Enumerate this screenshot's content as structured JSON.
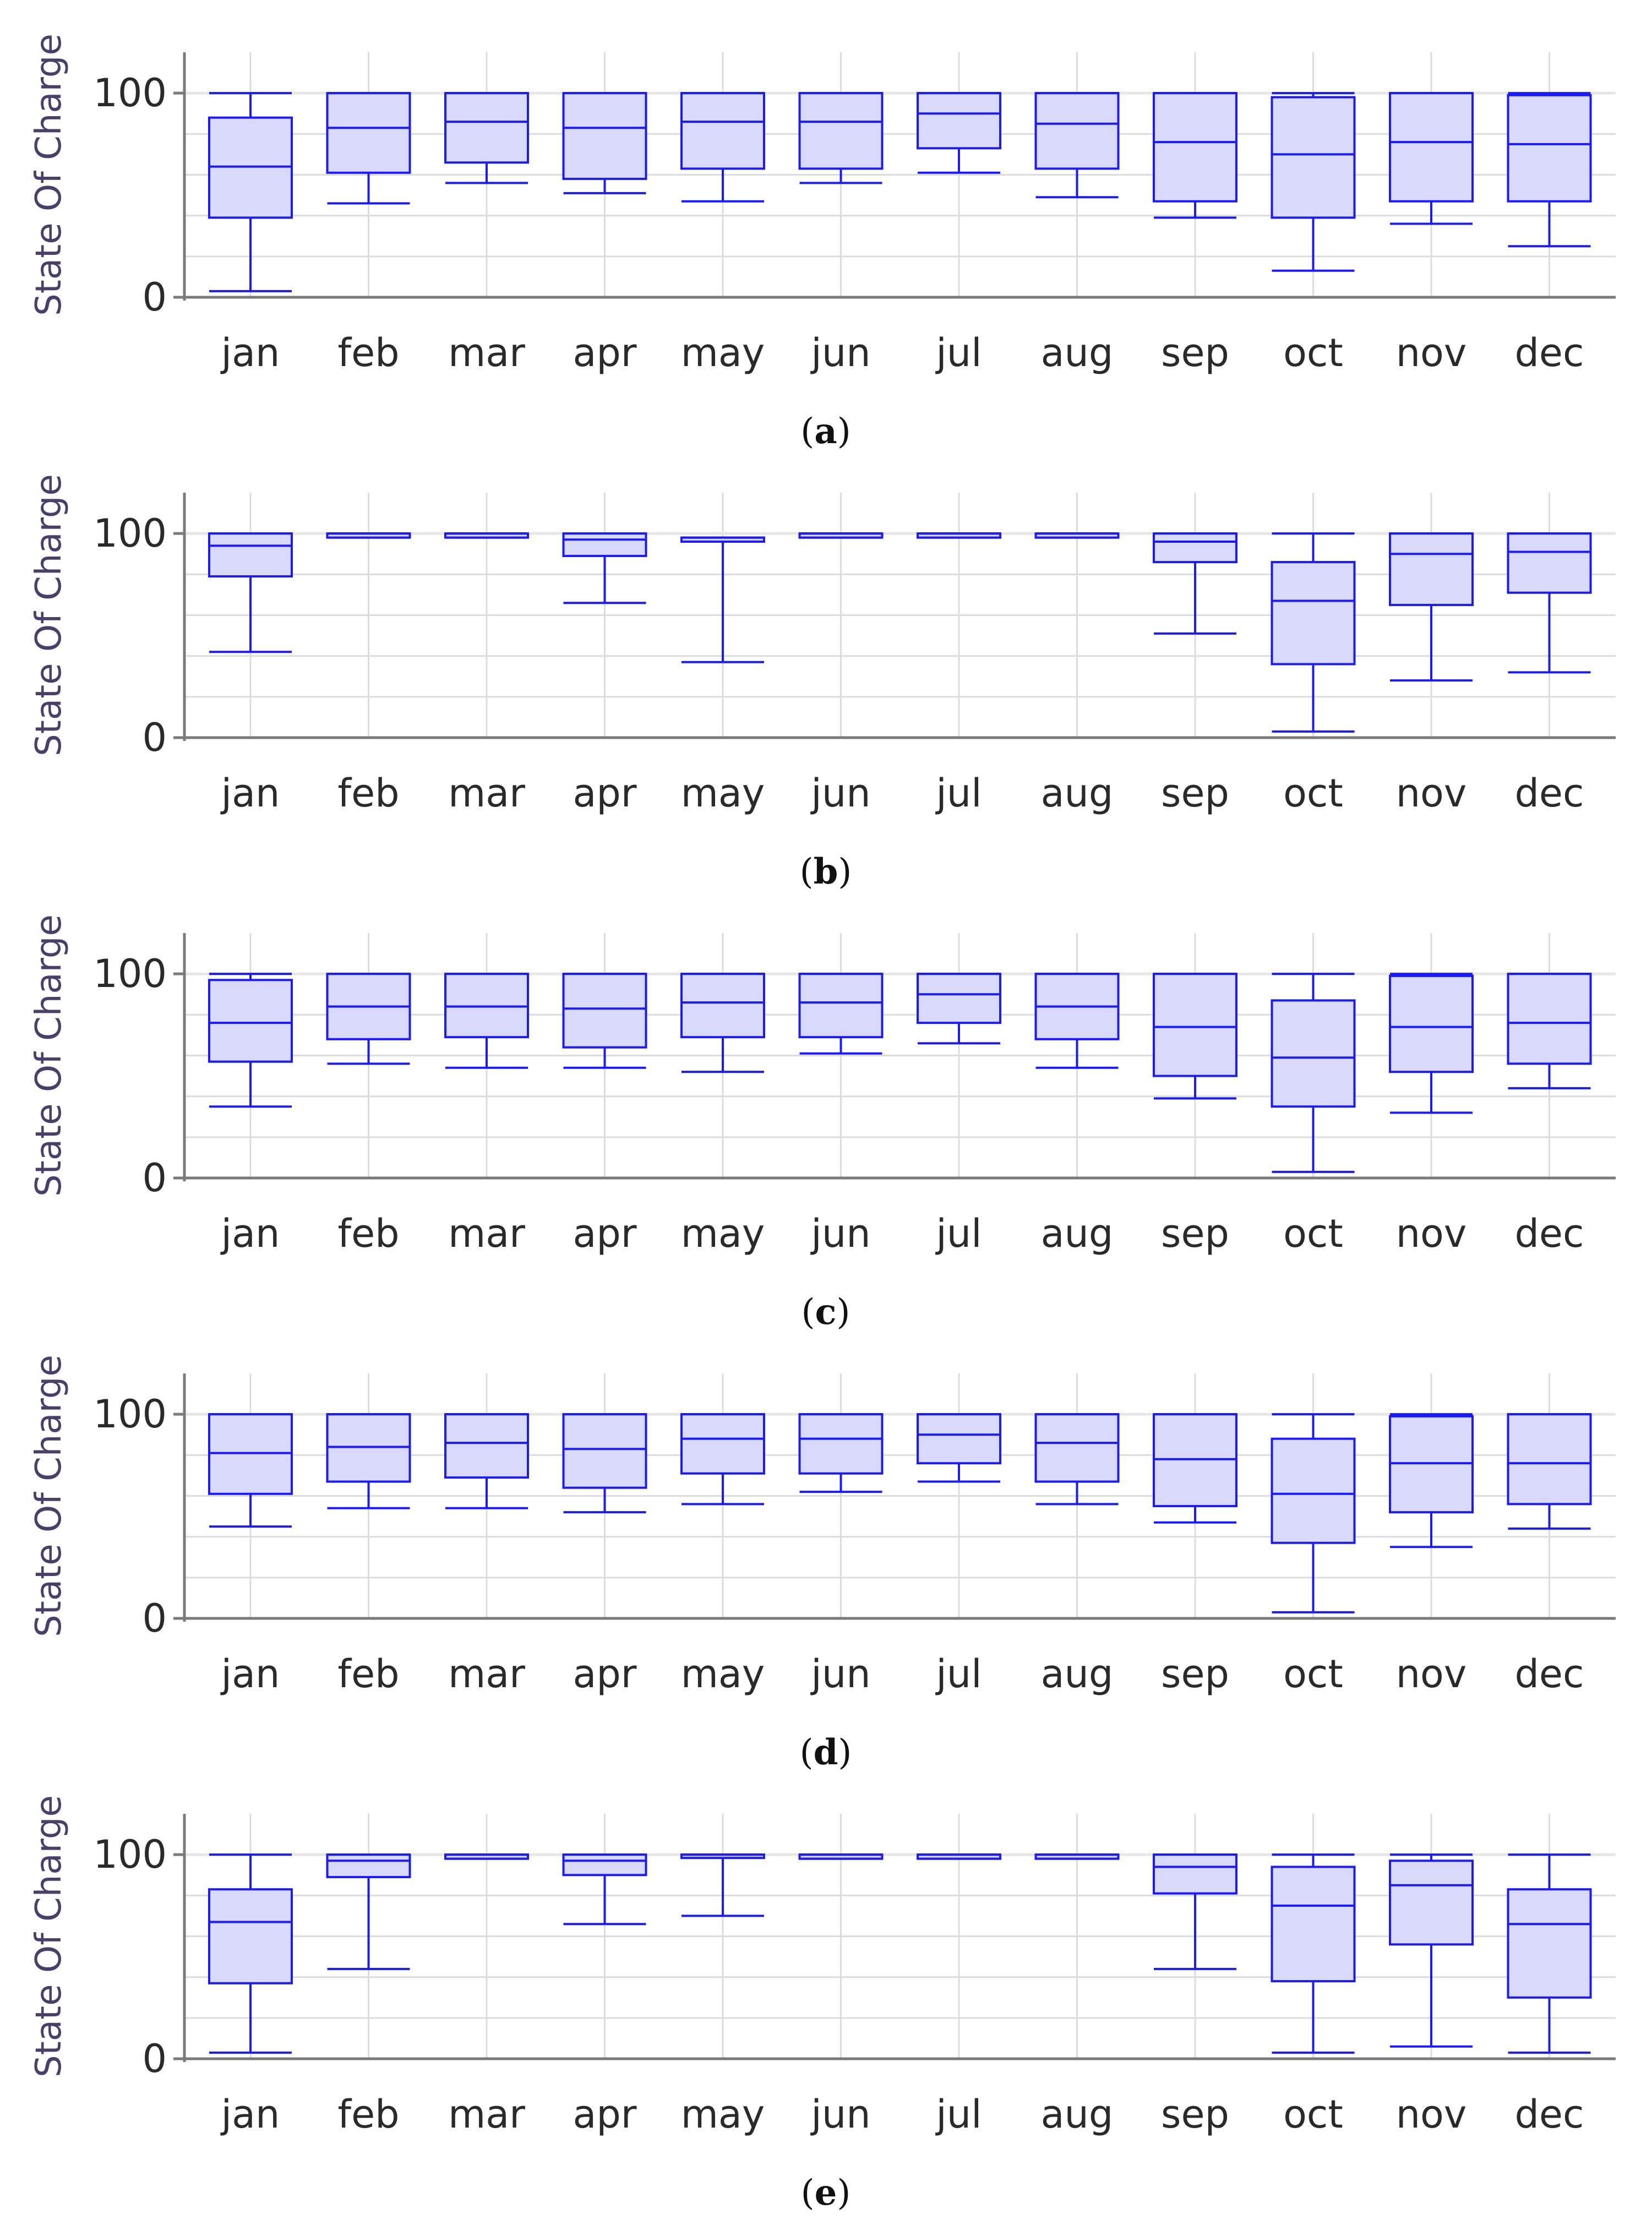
{
  "figure_title": "",
  "chart_data": [
    {
      "panel": "a",
      "type": "box",
      "ylabel": "State Of Charge",
      "xlabel": "",
      "title": "",
      "ylim": [
        0,
        120
      ],
      "yticks": [
        0,
        100
      ],
      "grid": true,
      "categories": [
        "jan",
        "feb",
        "mar",
        "apr",
        "may",
        "jun",
        "jul",
        "aug",
        "sep",
        "oct",
        "nov",
        "dec"
      ],
      "boxes": [
        {
          "min": 3,
          "q1": 39,
          "median": 64,
          "q3": 88,
          "max": 100
        },
        {
          "min": 46,
          "q1": 61,
          "median": 83,
          "q3": 100,
          "max": 100
        },
        {
          "min": 56,
          "q1": 66,
          "median": 86,
          "q3": 100,
          "max": 100
        },
        {
          "min": 51,
          "q1": 58,
          "median": 83,
          "q3": 100,
          "max": 100
        },
        {
          "min": 47,
          "q1": 63,
          "median": 86,
          "q3": 100,
          "max": 100
        },
        {
          "min": 56,
          "q1": 63,
          "median": 86,
          "q3": 100,
          "max": 100
        },
        {
          "min": 61,
          "q1": 73,
          "median": 90,
          "q3": 100,
          "max": 100
        },
        {
          "min": 49,
          "q1": 63,
          "median": 85,
          "q3": 100,
          "max": 100
        },
        {
          "min": 39,
          "q1": 47,
          "median": 76,
          "q3": 100,
          "max": 100
        },
        {
          "min": 13,
          "q1": 39,
          "median": 70,
          "q3": 98,
          "max": 100
        },
        {
          "min": 36,
          "q1": 47,
          "median": 76,
          "q3": 100,
          "max": 100
        },
        {
          "min": 25,
          "q1": 47,
          "median": 75,
          "q3": 99,
          "max": 100
        }
      ],
      "caption_letter": "a"
    },
    {
      "panel": "b",
      "type": "box",
      "ylabel": "State Of Charge",
      "xlabel": "",
      "title": "",
      "ylim": [
        0,
        120
      ],
      "yticks": [
        0,
        100
      ],
      "grid": true,
      "categories": [
        "jan",
        "feb",
        "mar",
        "apr",
        "may",
        "jun",
        "jul",
        "aug",
        "sep",
        "oct",
        "nov",
        "dec"
      ],
      "boxes": [
        {
          "min": 42,
          "q1": 79,
          "median": 94,
          "q3": 100,
          "max": 100
        },
        {
          "min": 98,
          "q1": 98,
          "median": 100,
          "q3": 100,
          "max": 100
        },
        {
          "min": 98,
          "q1": 98,
          "median": 100,
          "q3": 100,
          "max": 100
        },
        {
          "min": 66,
          "q1": 89,
          "median": 97,
          "q3": 100,
          "max": 100
        },
        {
          "min": 37,
          "q1": 96,
          "median": 98,
          "q3": 98,
          "max": 98
        },
        {
          "min": 98,
          "q1": 98,
          "median": 100,
          "q3": 100,
          "max": 100
        },
        {
          "min": 98,
          "q1": 98,
          "median": 100,
          "q3": 100,
          "max": 100
        },
        {
          "min": 98,
          "q1": 98,
          "median": 100,
          "q3": 100,
          "max": 100
        },
        {
          "min": 51,
          "q1": 86,
          "median": 96,
          "q3": 100,
          "max": 100
        },
        {
          "min": 3,
          "q1": 36,
          "median": 67,
          "q3": 86,
          "max": 100
        },
        {
          "min": 28,
          "q1": 65,
          "median": 90,
          "q3": 100,
          "max": 100
        },
        {
          "min": 32,
          "q1": 71,
          "median": 91,
          "q3": 100,
          "max": 100
        }
      ],
      "caption_letter": "b"
    },
    {
      "panel": "c",
      "type": "box",
      "ylabel": "State Of Charge",
      "xlabel": "",
      "title": "",
      "ylim": [
        0,
        120
      ],
      "yticks": [
        0,
        100
      ],
      "grid": true,
      "categories": [
        "jan",
        "feb",
        "mar",
        "apr",
        "may",
        "jun",
        "jul",
        "aug",
        "sep",
        "oct",
        "nov",
        "dec"
      ],
      "boxes": [
        {
          "min": 35,
          "q1": 57,
          "median": 76,
          "q3": 97,
          "max": 100
        },
        {
          "min": 56,
          "q1": 68,
          "median": 84,
          "q3": 100,
          "max": 100
        },
        {
          "min": 54,
          "q1": 69,
          "median": 84,
          "q3": 100,
          "max": 100
        },
        {
          "min": 54,
          "q1": 64,
          "median": 83,
          "q3": 100,
          "max": 100
        },
        {
          "min": 52,
          "q1": 69,
          "median": 86,
          "q3": 100,
          "max": 100
        },
        {
          "min": 61,
          "q1": 69,
          "median": 86,
          "q3": 100,
          "max": 100
        },
        {
          "min": 66,
          "q1": 76,
          "median": 90,
          "q3": 100,
          "max": 100
        },
        {
          "min": 54,
          "q1": 68,
          "median": 84,
          "q3": 100,
          "max": 100
        },
        {
          "min": 39,
          "q1": 50,
          "median": 74,
          "q3": 100,
          "max": 100
        },
        {
          "min": 3,
          "q1": 35,
          "median": 59,
          "q3": 87,
          "max": 100
        },
        {
          "min": 32,
          "q1": 52,
          "median": 74,
          "q3": 99,
          "max": 100
        },
        {
          "min": 44,
          "q1": 56,
          "median": 76,
          "q3": 100,
          "max": 100
        }
      ],
      "caption_letter": "c"
    },
    {
      "panel": "d",
      "type": "box",
      "ylabel": "State Of Charge",
      "xlabel": "",
      "title": "",
      "ylim": [
        0,
        120
      ],
      "yticks": [
        0,
        100
      ],
      "grid": true,
      "categories": [
        "jan",
        "feb",
        "mar",
        "apr",
        "may",
        "jun",
        "jul",
        "aug",
        "sep",
        "oct",
        "nov",
        "dec"
      ],
      "boxes": [
        {
          "min": 45,
          "q1": 61,
          "median": 81,
          "q3": 100,
          "max": 100
        },
        {
          "min": 54,
          "q1": 67,
          "median": 84,
          "q3": 100,
          "max": 100
        },
        {
          "min": 54,
          "q1": 69,
          "median": 86,
          "q3": 100,
          "max": 100
        },
        {
          "min": 52,
          "q1": 64,
          "median": 83,
          "q3": 100,
          "max": 100
        },
        {
          "min": 56,
          "q1": 71,
          "median": 88,
          "q3": 100,
          "max": 100
        },
        {
          "min": 62,
          "q1": 71,
          "median": 88,
          "q3": 100,
          "max": 100
        },
        {
          "min": 67,
          "q1": 76,
          "median": 90,
          "q3": 100,
          "max": 100
        },
        {
          "min": 56,
          "q1": 67,
          "median": 86,
          "q3": 100,
          "max": 100
        },
        {
          "min": 47,
          "q1": 55,
          "median": 78,
          "q3": 100,
          "max": 100
        },
        {
          "min": 3,
          "q1": 37,
          "median": 61,
          "q3": 88,
          "max": 100
        },
        {
          "min": 35,
          "q1": 52,
          "median": 76,
          "q3": 99,
          "max": 100
        },
        {
          "min": 44,
          "q1": 56,
          "median": 76,
          "q3": 100,
          "max": 100
        }
      ],
      "caption_letter": "d"
    },
    {
      "panel": "e",
      "type": "box",
      "ylabel": "State Of Charge",
      "xlabel": "",
      "title": "",
      "ylim": [
        0,
        120
      ],
      "yticks": [
        0,
        100
      ],
      "grid": true,
      "categories": [
        "jan",
        "feb",
        "mar",
        "apr",
        "may",
        "jun",
        "jul",
        "aug",
        "sep",
        "oct",
        "nov",
        "dec"
      ],
      "boxes": [
        {
          "min": 3,
          "q1": 37,
          "median": 67,
          "q3": 83,
          "max": 100
        },
        {
          "min": 44,
          "q1": 89,
          "median": 97,
          "q3": 100,
          "max": 100
        },
        {
          "min": 98,
          "q1": 98,
          "median": 100,
          "q3": 100,
          "max": 100
        },
        {
          "min": 66,
          "q1": 90,
          "median": 97,
          "q3": 100,
          "max": 100
        },
        {
          "min": 70,
          "q1": 100,
          "median": 100,
          "q3": 100,
          "max": 100
        },
        {
          "min": 98,
          "q1": 98,
          "median": 100,
          "q3": 100,
          "max": 100
        },
        {
          "min": 98,
          "q1": 98,
          "median": 100,
          "q3": 100,
          "max": 100
        },
        {
          "min": 98,
          "q1": 98,
          "median": 100,
          "q3": 100,
          "max": 100
        },
        {
          "min": 44,
          "q1": 81,
          "median": 94,
          "q3": 100,
          "max": 100
        },
        {
          "min": 3,
          "q1": 38,
          "median": 75,
          "q3": 94,
          "max": 100
        },
        {
          "min": 6,
          "q1": 56,
          "median": 85,
          "q3": 97,
          "max": 100
        },
        {
          "min": 3,
          "q1": 30,
          "median": 66,
          "q3": 83,
          "max": 100
        }
      ],
      "caption_letter": "e"
    }
  ],
  "style": {
    "box_stroke": "#1a1aff",
    "box_fill": "#d9d9fb",
    "grid": "#dcdcdc",
    "axis": "#7a7a7a",
    "ylabel_color": "#4a3f6b"
  }
}
